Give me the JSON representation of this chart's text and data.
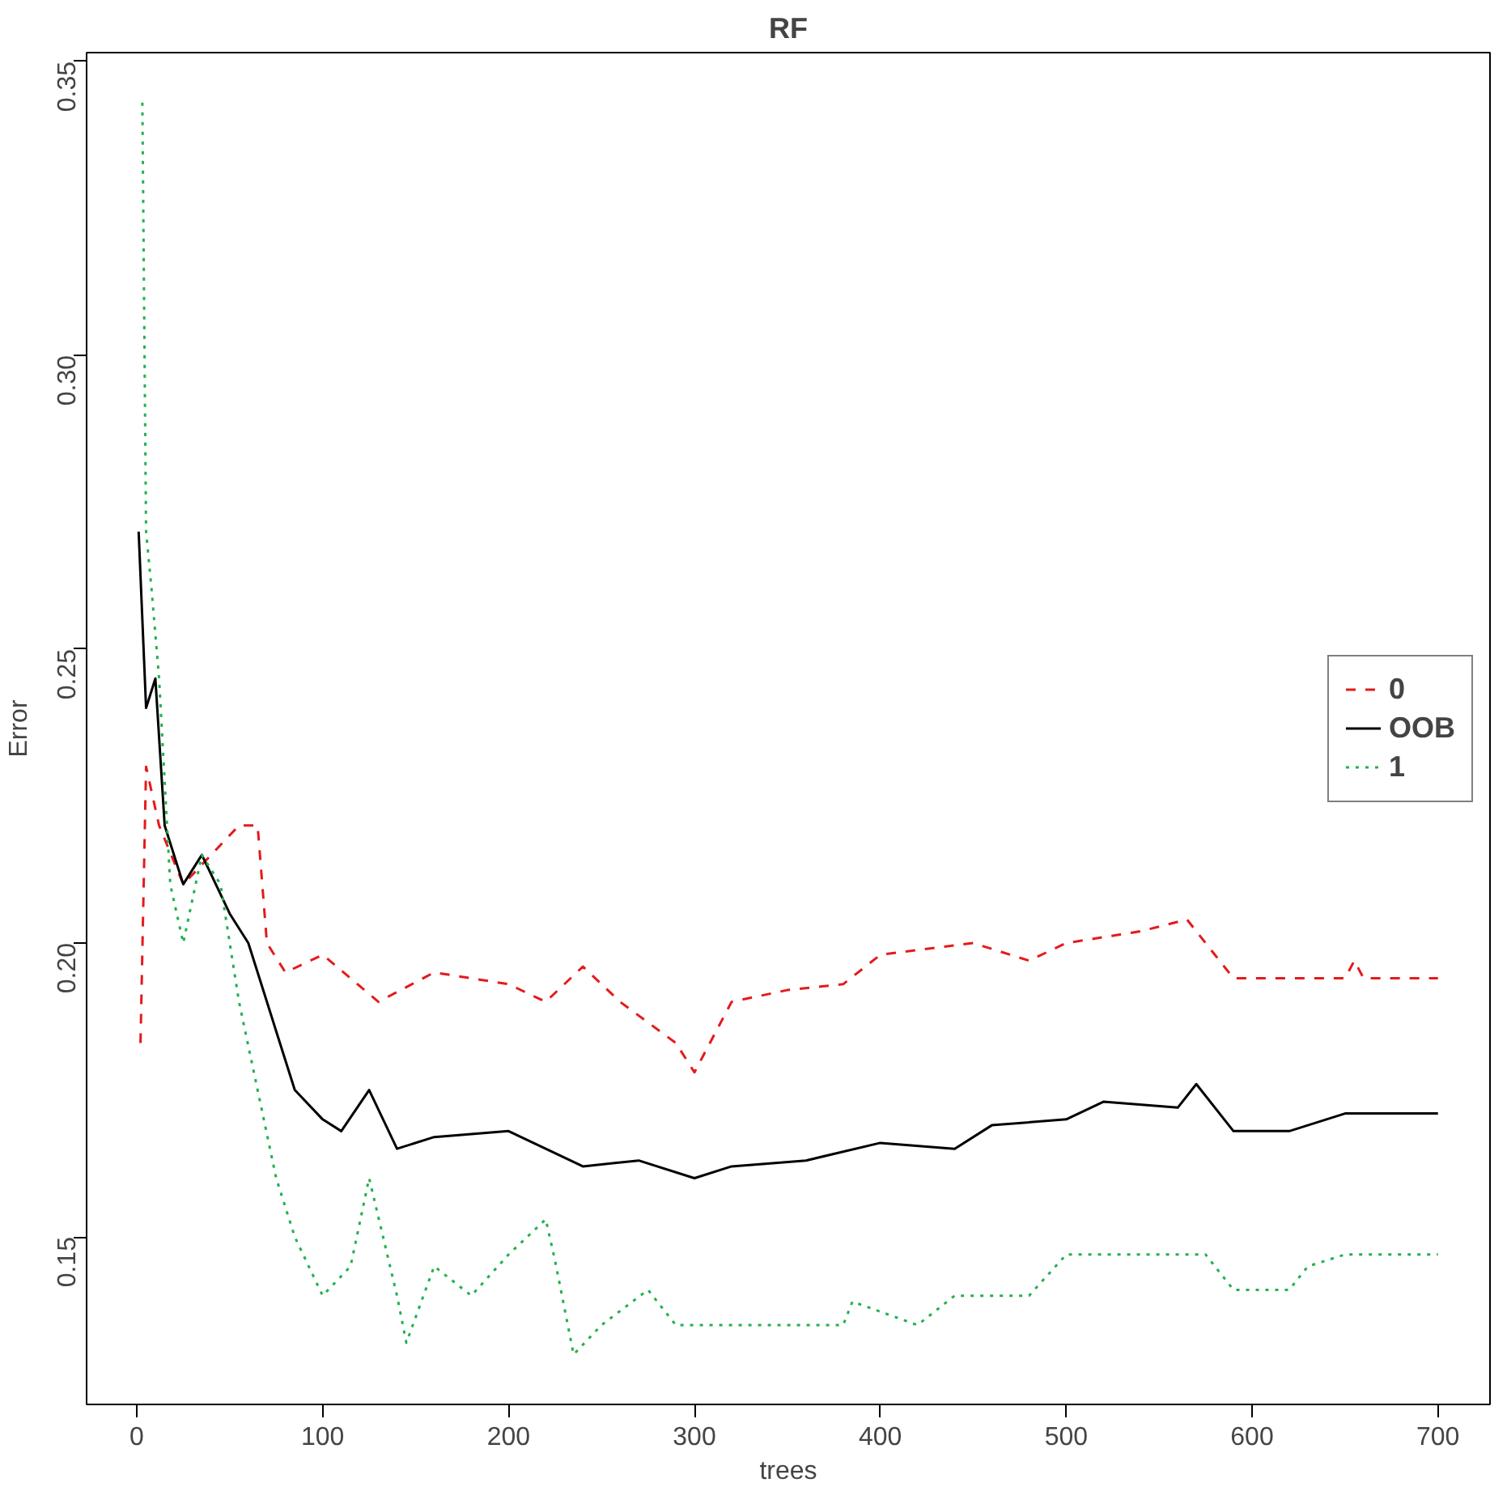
{
  "chart_data": {
    "type": "line",
    "title": "RF",
    "xlabel": "trees",
    "ylabel": "Error",
    "xlim": [
      -27,
      728
    ],
    "ylim": [
      0.1215,
      0.3515
    ],
    "xticks": [
      0,
      100,
      200,
      300,
      400,
      500,
      600,
      700
    ],
    "yticks": [
      {
        "value": 0.15,
        "label": "0.15"
      },
      {
        "value": 0.2,
        "label": "0.20"
      },
      {
        "value": 0.25,
        "label": "0.25"
      },
      {
        "value": 0.3,
        "label": "0.30"
      },
      {
        "value": 0.35,
        "label": "0.35"
      }
    ],
    "grid": false,
    "legend": "right",
    "series": [
      {
        "name": "0",
        "color": "#e41a1c",
        "line_style": "dashed",
        "x": [
          2,
          5,
          12,
          25,
          40,
          55,
          65,
          70,
          80,
          100,
          130,
          160,
          200,
          220,
          240,
          260,
          290,
          300,
          320,
          350,
          380,
          400,
          450,
          480,
          500,
          540,
          565,
          580,
          590,
          650,
          655,
          660,
          700
        ],
        "values": [
          0.183,
          0.23,
          0.22,
          0.21,
          0.215,
          0.22,
          0.22,
          0.2,
          0.195,
          0.198,
          0.19,
          0.195,
          0.193,
          0.19,
          0.196,
          0.19,
          0.183,
          0.178,
          0.19,
          0.192,
          0.193,
          0.198,
          0.2,
          0.197,
          0.2,
          0.202,
          0.204,
          0.198,
          0.194,
          0.194,
          0.197,
          0.194,
          0.194
        ]
      },
      {
        "name": "OOB",
        "color": "#000000",
        "line_style": "solid",
        "x": [
          1,
          5,
          10,
          15,
          25,
          35,
          50,
          60,
          65,
          75,
          85,
          100,
          110,
          125,
          140,
          160,
          200,
          220,
          240,
          270,
          300,
          320,
          360,
          400,
          440,
          460,
          500,
          520,
          560,
          570,
          590,
          620,
          650,
          700
        ],
        "values": [
          0.27,
          0.24,
          0.245,
          0.22,
          0.21,
          0.215,
          0.205,
          0.2,
          0.195,
          0.185,
          0.175,
          0.17,
          0.168,
          0.175,
          0.165,
          0.167,
          0.168,
          0.165,
          0.162,
          0.163,
          0.16,
          0.162,
          0.163,
          0.166,
          0.165,
          0.169,
          0.17,
          0.173,
          0.172,
          0.176,
          0.168,
          0.168,
          0.171,
          0.171
        ]
      },
      {
        "name": "1",
        "color": "#22b14c",
        "line_style": "dotted",
        "x": [
          3,
          5,
          8,
          12,
          18,
          25,
          35,
          45,
          55,
          65,
          75,
          85,
          100,
          115,
          125,
          140,
          145,
          160,
          180,
          200,
          220,
          225,
          235,
          250,
          275,
          290,
          380,
          385,
          420,
          440,
          480,
          500,
          575,
          590,
          620,
          630,
          650,
          700
        ],
        "values": [
          0.343,
          0.27,
          0.26,
          0.245,
          0.21,
          0.2,
          0.215,
          0.21,
          0.19,
          0.175,
          0.16,
          0.15,
          0.14,
          0.145,
          0.16,
          0.14,
          0.132,
          0.145,
          0.14,
          0.147,
          0.153,
          0.146,
          0.13,
          0.135,
          0.141,
          0.135,
          0.135,
          0.139,
          0.135,
          0.14,
          0.14,
          0.147,
          0.147,
          0.141,
          0.141,
          0.145,
          0.147,
          0.147
        ]
      }
    ]
  }
}
